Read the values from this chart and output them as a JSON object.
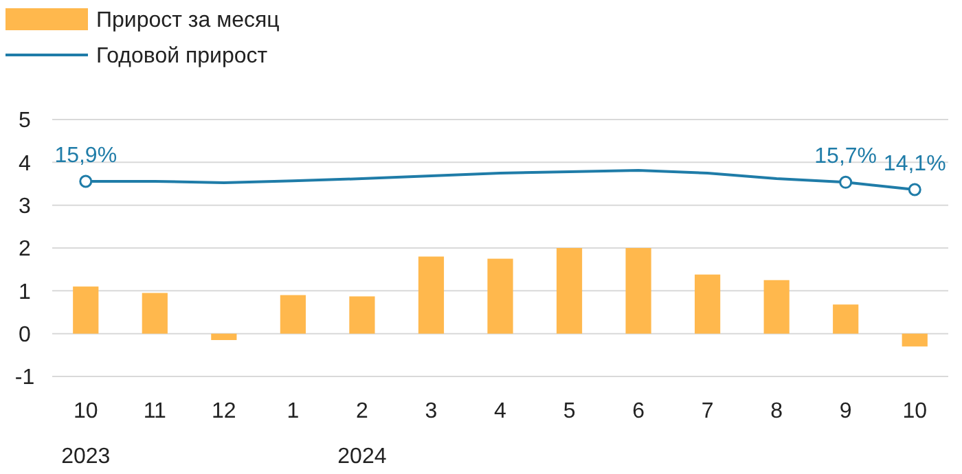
{
  "chart_data": {
    "type": "bar",
    "categories": [
      "10",
      "11",
      "12",
      "1",
      "2",
      "3",
      "4",
      "5",
      "6",
      "7",
      "8",
      "9",
      "10"
    ],
    "series": [
      {
        "name": "Прирост за месяц",
        "color": "#ffb84d",
        "values": [
          1.1,
          0.95,
          -0.15,
          0.9,
          0.87,
          1.8,
          1.75,
          2.0,
          2.0,
          1.38,
          1.25,
          0.68,
          -0.3
        ]
      },
      {
        "name": "Годовой прирост",
        "type": "line",
        "axis": "y2",
        "color": "#1f7ca8",
        "values": [
          15.9,
          15.9,
          15.6,
          16.0,
          16.5,
          17.1,
          17.7,
          18.0,
          18.3,
          17.7,
          16.5,
          15.7,
          14.1
        ],
        "value_labels": [
          "15,9%",
          null,
          null,
          null,
          null,
          null,
          null,
          null,
          null,
          null,
          null,
          "15,7%",
          "14,1%"
        ]
      }
    ],
    "ylim": [
      -1,
      5
    ],
    "yticks": [
      {
        "value": -1,
        "label": "-1"
      },
      0,
      1,
      2,
      3,
      4,
      5
    ],
    "y2lim": [
      -26.7,
      29.4
    ],
    "grid": "y",
    "legend": "top left",
    "tick_labels": "xy",
    "annotations": [
      "2023",
      "2024"
    ]
  }
}
